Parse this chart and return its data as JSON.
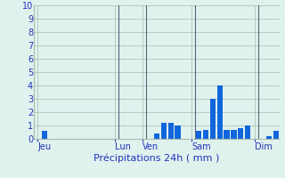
{
  "title": "Précipitations 24h ( mm )",
  "bar_color": "#1166dd",
  "background_color": "#dff2ee",
  "grid_color": "#aabbaa",
  "axis_label_color": "#2233bb",
  "tick_label_color": "#2233bb",
  "ylim": [
    0,
    10
  ],
  "yticks": [
    0,
    1,
    2,
    3,
    4,
    5,
    6,
    7,
    8,
    9,
    10
  ],
  "n_bars": 35,
  "bar_values": [
    0,
    0.6,
    0,
    0,
    0,
    0,
    0,
    0,
    0,
    0,
    0,
    0,
    0,
    0,
    0,
    0,
    0,
    0.4,
    1.2,
    1.2,
    1.0,
    0,
    0,
    0.6,
    0.7,
    3.0,
    4.0,
    0.7,
    0.7,
    0.8,
    1.0,
    0,
    0,
    0.2,
    0.6
  ],
  "day_labels": [
    "Jeu",
    "Lun",
    "Ven",
    "Sam",
    "Dim"
  ],
  "day_positions": [
    1,
    12,
    16,
    23,
    32
  ],
  "vline_positions": [
    11.5,
    15.5,
    22.5,
    31.5
  ],
  "vline_color": "#556677",
  "xlabel_fontsize": 8,
  "ytick_fontsize": 7,
  "xtick_fontsize": 7
}
